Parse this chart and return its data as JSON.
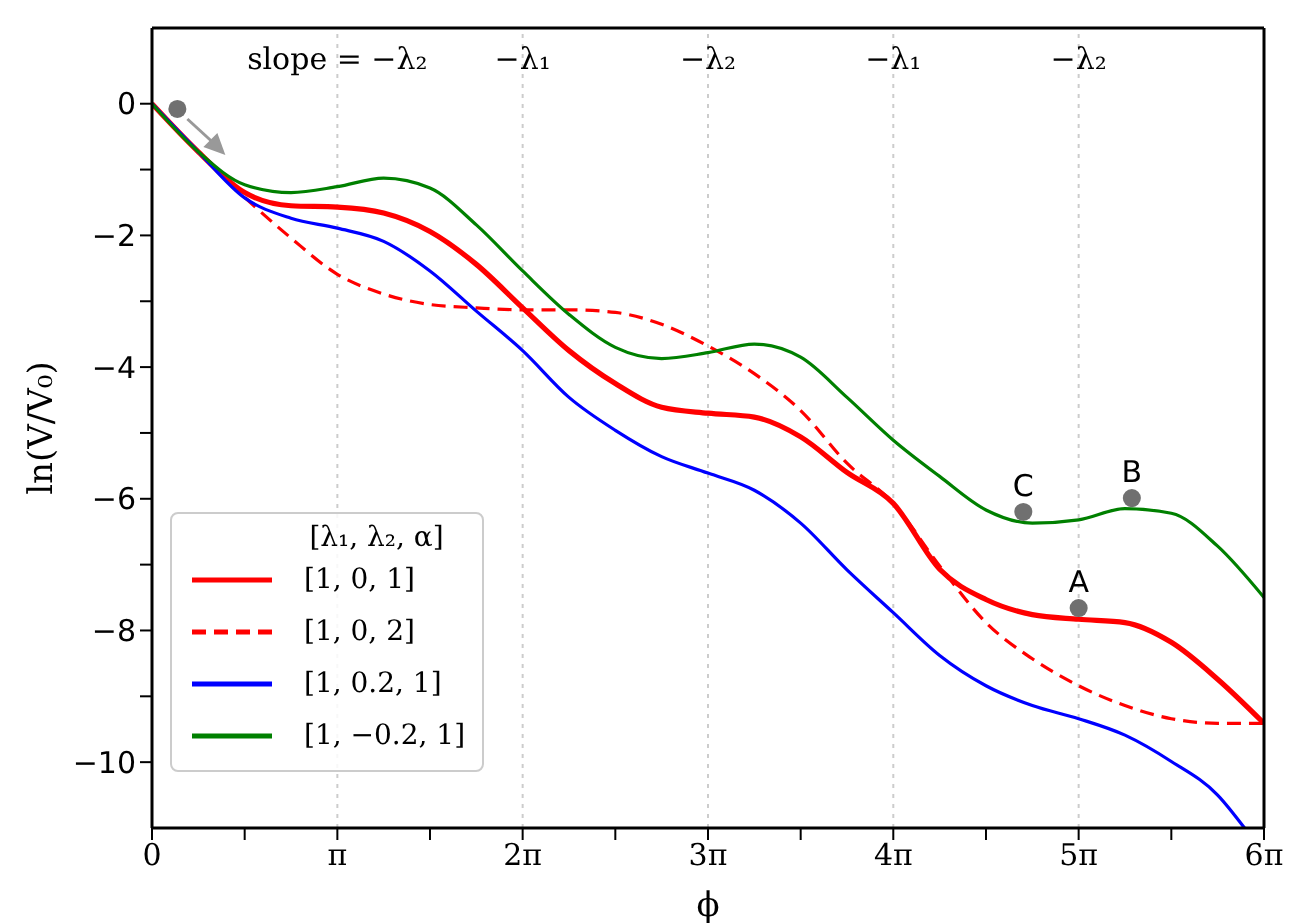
{
  "chart_data": {
    "type": "line",
    "xlabel": "ϕ",
    "ylabel": "ln(V/V₀)",
    "legend_title": "[λ₁, λ₂, α]",
    "legend": "bottom left",
    "xlim": [
      0,
      18.85
    ],
    "ylim": [
      -11,
      1.15
    ],
    "xticks": [
      0,
      {
        "value": 1.571,
        "label": null
      },
      {
        "value": 3.142,
        "label": "π"
      },
      {
        "value": 4.712,
        "label": null
      },
      {
        "value": 6.283,
        "label": "2π"
      },
      {
        "value": 7.854,
        "label": null
      },
      {
        "value": 9.425,
        "label": "3π"
      },
      {
        "value": 10.996,
        "label": null
      },
      {
        "value": 12.566,
        "label": "4π"
      },
      {
        "value": 14.137,
        "label": null
      },
      {
        "value": 15.708,
        "label": "5π"
      },
      {
        "value": 17.279,
        "label": null
      },
      {
        "value": 18.85,
        "label": "6π"
      }
    ],
    "yticks": [
      0,
      {
        "value": -1,
        "label": null
      },
      -2,
      {
        "value": -3,
        "label": null
      },
      -4,
      {
        "value": -5,
        "label": null
      },
      -6,
      {
        "value": -7,
        "label": null
      },
      -8,
      {
        "value": -9,
        "label": null
      },
      -10
    ],
    "x": [
      0,
      0.785,
      1.571,
      2.356,
      3.142,
      3.927,
      4.712,
      5.498,
      6.283,
      7.069,
      7.854,
      8.639,
      9.425,
      10.21,
      10.996,
      11.781,
      12.566,
      13.352,
      14.137,
      14.923,
      15.708,
      16.493,
      17.279,
      18.064,
      18.85
    ],
    "series": [
      {
        "name": "[1, 0, 1]",
        "color": "#ff0000",
        "line_style": "solid",
        "values": [
          0,
          -0.73,
          -1.35,
          -1.55,
          -1.57,
          -1.66,
          -1.94,
          -2.44,
          -3.1,
          -3.75,
          -4.25,
          -4.61,
          -4.7,
          -4.76,
          -5.06,
          -5.6,
          -6.07,
          -7.07,
          -7.53,
          -7.76,
          -7.83,
          -7.88,
          -8.18,
          -8.74,
          -9.41
        ]
      },
      {
        "name": "[1, 0, 2]",
        "color": "#ff0000",
        "line_style": "dashed",
        "values": [
          0,
          -0.73,
          -1.42,
          -2.04,
          -2.59,
          -2.89,
          -3.05,
          -3.1,
          -3.13,
          -3.13,
          -3.17,
          -3.35,
          -3.68,
          -4.1,
          -4.66,
          -5.46,
          -6.07,
          -7.02,
          -7.88,
          -8.43,
          -8.84,
          -9.14,
          -9.34,
          -9.41,
          -9.41
        ]
      },
      {
        "name": "[1, 0.2, 1]",
        "color": "#0000ff",
        "line_style": "solid",
        "x": [
          0,
          0.785,
          1.571,
          2.356,
          3.142,
          3.927,
          4.712,
          5.498,
          6.283,
          7.069,
          7.854,
          8.639,
          9.425,
          10.21,
          10.996,
          11.781,
          12.566,
          13.352,
          14.137,
          14.923,
          15.708,
          16.493,
          17.279,
          18.064,
          18.52
        ],
        "values": [
          0,
          -0.73,
          -1.43,
          -1.74,
          -1.89,
          -2.09,
          -2.54,
          -3.15,
          -3.75,
          -4.46,
          -4.96,
          -5.36,
          -5.61,
          -5.87,
          -6.37,
          -7.08,
          -7.73,
          -8.38,
          -8.84,
          -9.14,
          -9.34,
          -9.59,
          -9.99,
          -10.5,
          -11
        ]
      },
      {
        "name": "[1, −0.2, 1]",
        "color": "#008000",
        "line_style": "solid",
        "values": [
          0,
          -0.73,
          -1.23,
          -1.35,
          -1.26,
          -1.13,
          -1.28,
          -1.84,
          -2.54,
          -3.2,
          -3.7,
          -3.87,
          -3.78,
          -3.65,
          -3.85,
          -4.46,
          -5.11,
          -5.66,
          -6.17,
          -6.37,
          -6.32,
          -6.15,
          -6.22,
          -6.72,
          -7.5
        ]
      },
      {
        "type": "scatter",
        "color": "#707070",
        "marker": "circle",
        "x": [
          0.43,
          14.77,
          15.708,
          16.61
        ],
        "values": [
          -0.08,
          -6.2,
          -7.66,
          -5.99
        ]
      }
    ],
    "ref_lines": [
      {
        "axis": "x",
        "value": 3.142,
        "label": "slope = −λ₂",
        "color": "#cccccc",
        "line_style": "dotted"
      },
      {
        "axis": "x",
        "value": 6.283,
        "label": "−λ₁",
        "color": "#cccccc",
        "line_style": "dotted"
      },
      {
        "axis": "x",
        "value": 9.425,
        "label": "−λ₂",
        "color": "#cccccc",
        "line_style": "dotted"
      },
      {
        "axis": "x",
        "value": 12.566,
        "label": "−λ₁",
        "color": "#cccccc",
        "line_style": "dotted"
      },
      {
        "axis": "x",
        "value": 15.708,
        "label": "−λ₂",
        "color": "#cccccc",
        "line_style": "dotted"
      }
    ],
    "annotations": [
      {
        "text": "C",
        "x": 14.77,
        "y": -6.2
      },
      {
        "text": "A",
        "x": 15.708,
        "y": -7.66
      },
      {
        "text": "B",
        "x": 16.61,
        "y": -5.99
      }
    ]
  }
}
